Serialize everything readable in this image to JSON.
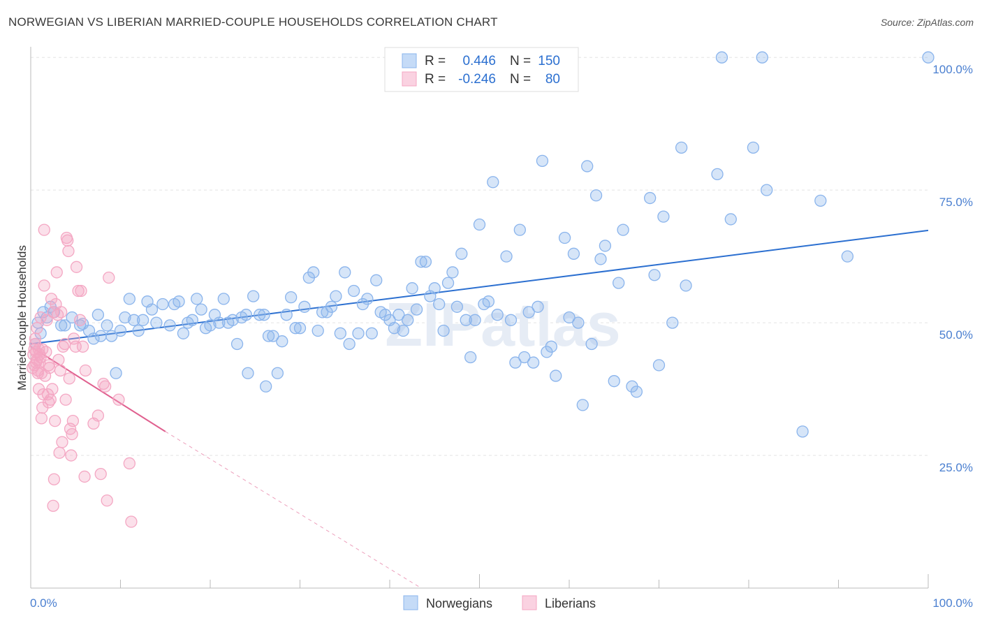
{
  "chart_data": {
    "type": "scatter",
    "title": "NORWEGIAN VS LIBERIAN MARRIED-COUPLE HOUSEHOLDS CORRELATION CHART",
    "source": "Source: ZipAtlas.com",
    "xlabel": "",
    "ylabel": "Married-couple Households",
    "xlim": [
      0,
      100
    ],
    "ylim": [
      0,
      102
    ],
    "x_tick_labels": [
      "0.0%",
      "100.0%"
    ],
    "y_ticks": [
      25,
      50,
      75,
      100
    ],
    "y_tick_labels": [
      "25.0%",
      "50.0%",
      "75.0%",
      "100.0%"
    ],
    "grid": true,
    "watermark": "ZIPatlas",
    "legend_stats": [
      {
        "r_label": "R =",
        "r_value": "0.446",
        "n_label": "N =",
        "n_value": "150"
      },
      {
        "r_label": "R =",
        "r_value": "-0.246",
        "n_label": "N =",
        "n_value": "80"
      }
    ],
    "series": [
      {
        "name": "Norwegians",
        "color": "#8ab4ec",
        "line_color": "#2b6fd0",
        "trend": {
          "x": [
            0,
            100
          ],
          "y": [
            46.0,
            67.4
          ]
        },
        "points": [
          [
            0.5,
            46
          ],
          [
            0.8,
            50
          ],
          [
            1.1,
            48
          ],
          [
            1.4,
            52
          ],
          [
            1.8,
            51
          ],
          [
            2.2,
            53
          ],
          [
            2.6,
            52
          ],
          [
            3.4,
            49.5
          ],
          [
            3.8,
            49.5
          ],
          [
            4.6,
            51
          ],
          [
            5.5,
            49.5
          ],
          [
            5.8,
            49.8
          ],
          [
            6.5,
            48.5
          ],
          [
            7,
            47
          ],
          [
            7.5,
            51.5
          ],
          [
            7.8,
            47.5
          ],
          [
            8.5,
            49.5
          ],
          [
            9,
            47.5
          ],
          [
            9.5,
            40.5
          ],
          [
            10,
            48.5
          ],
          [
            10.5,
            51
          ],
          [
            11,
            54.5
          ],
          [
            11.5,
            50.5
          ],
          [
            12,
            48.5
          ],
          [
            12.5,
            50.5
          ],
          [
            13,
            54
          ],
          [
            13.5,
            52.5
          ],
          [
            14,
            50
          ],
          [
            14.7,
            53.5
          ],
          [
            15.5,
            49.5
          ],
          [
            16,
            53.5
          ],
          [
            16.5,
            54
          ],
          [
            17,
            48
          ],
          [
            17.5,
            50
          ],
          [
            18,
            50.5
          ],
          [
            18.5,
            54.5
          ],
          [
            19,
            52.5
          ],
          [
            19.5,
            49
          ],
          [
            20,
            49.5
          ],
          [
            20.5,
            51.5
          ],
          [
            21,
            50
          ],
          [
            21.5,
            54.5
          ],
          [
            22,
            50
          ],
          [
            22.5,
            50.5
          ],
          [
            23,
            46
          ],
          [
            23.5,
            51
          ],
          [
            24,
            51.5
          ],
          [
            24.2,
            40.5
          ],
          [
            24.8,
            55
          ],
          [
            25.5,
            51.5
          ],
          [
            26,
            51.5
          ],
          [
            26.2,
            38
          ],
          [
            26.5,
            47.5
          ],
          [
            27,
            47.5
          ],
          [
            27.5,
            40.5
          ],
          [
            28,
            46.5
          ],
          [
            28.5,
            51.5
          ],
          [
            29,
            54.8
          ],
          [
            29.5,
            49
          ],
          [
            30,
            49
          ],
          [
            30.5,
            53
          ],
          [
            31,
            58.5
          ],
          [
            31.5,
            59.5
          ],
          [
            32,
            48.5
          ],
          [
            32.5,
            52
          ],
          [
            33,
            52
          ],
          [
            33.5,
            53
          ],
          [
            34,
            55
          ],
          [
            34.5,
            48
          ],
          [
            35,
            59.5
          ],
          [
            35.5,
            46
          ],
          [
            36,
            56
          ],
          [
            36.5,
            48
          ],
          [
            37,
            53.5
          ],
          [
            37.5,
            54.5
          ],
          [
            38,
            48
          ],
          [
            38.5,
            58
          ],
          [
            39,
            52
          ],
          [
            39.5,
            51.5
          ],
          [
            40,
            50.5
          ],
          [
            40.5,
            49
          ],
          [
            41,
            51.5
          ],
          [
            41.5,
            48.5
          ],
          [
            42,
            50.5
          ],
          [
            42.5,
            56.5
          ],
          [
            43,
            52.5
          ],
          [
            43.5,
            61.5
          ],
          [
            44,
            61.5
          ],
          [
            44.5,
            55
          ],
          [
            45,
            56.5
          ],
          [
            45.5,
            53.5
          ],
          [
            46,
            48.5
          ],
          [
            46.5,
            57.5
          ],
          [
            47,
            59.5
          ],
          [
            47.5,
            53
          ],
          [
            48,
            63
          ],
          [
            48.5,
            50.5
          ],
          [
            49,
            43.5
          ],
          [
            49.5,
            50.5
          ],
          [
            50,
            68.5
          ],
          [
            50.5,
            53.5
          ],
          [
            51,
            54
          ],
          [
            51.5,
            76.5
          ],
          [
            52,
            51.5
          ],
          [
            53,
            62.5
          ],
          [
            53.5,
            50.5
          ],
          [
            54,
            42.5
          ],
          [
            54.5,
            67.5
          ],
          [
            55,
            43.5
          ],
          [
            55.5,
            52
          ],
          [
            56,
            42.5
          ],
          [
            56.5,
            53
          ],
          [
            57,
            80.5
          ],
          [
            57.5,
            44.5
          ],
          [
            58,
            45.5
          ],
          [
            58.5,
            40
          ],
          [
            59.5,
            66
          ],
          [
            60,
            51
          ],
          [
            60.5,
            63
          ],
          [
            61,
            50
          ],
          [
            61.5,
            34.5
          ],
          [
            62,
            79.5
          ],
          [
            62.5,
            46
          ],
          [
            63,
            74
          ],
          [
            63.5,
            62
          ],
          [
            64,
            64.5
          ],
          [
            65,
            39
          ],
          [
            65.5,
            57.5
          ],
          [
            66,
            67.5
          ],
          [
            67,
            38
          ],
          [
            67.5,
            37
          ],
          [
            69,
            73.5
          ],
          [
            69.5,
            59
          ],
          [
            70,
            42
          ],
          [
            70.5,
            70
          ],
          [
            71.5,
            50
          ],
          [
            72.5,
            83
          ],
          [
            73,
            57
          ],
          [
            76.5,
            78
          ],
          [
            77,
            100
          ],
          [
            78,
            69.5
          ],
          [
            80.5,
            83
          ],
          [
            81.5,
            100
          ],
          [
            82,
            75
          ],
          [
            86,
            29.5
          ],
          [
            88,
            73
          ],
          [
            91,
            62.5
          ],
          [
            100,
            100
          ]
        ]
      },
      {
        "name": "Liberians",
        "color": "#f4a7c3",
        "line_color": "#e0608f",
        "trend": {
          "x": [
            0,
            15
          ],
          "y": [
            45.5,
            29.5
          ]
        },
        "trend_dashed": {
          "x": [
            15,
            43.5
          ],
          "y": [
            29.5,
            0
          ]
        },
        "points": [
          [
            0.2,
            41.5
          ],
          [
            0.3,
            44
          ],
          [
            0.4,
            45
          ],
          [
            0.4,
            42
          ],
          [
            0.5,
            46
          ],
          [
            0.5,
            47
          ],
          [
            0.6,
            44.5
          ],
          [
            0.6,
            42.5
          ],
          [
            0.7,
            43
          ],
          [
            0.7,
            49
          ],
          [
            0.8,
            41
          ],
          [
            0.8,
            40.5
          ],
          [
            0.9,
            45
          ],
          [
            0.9,
            37.5
          ],
          [
            1,
            44
          ],
          [
            1,
            42.5
          ],
          [
            1.1,
            51
          ],
          [
            1.1,
            43.5
          ],
          [
            1.2,
            40.5
          ],
          [
            1.2,
            32
          ],
          [
            1.3,
            34
          ],
          [
            1.3,
            45
          ],
          [
            1.4,
            36.5
          ],
          [
            1.5,
            67.5
          ],
          [
            1.5,
            57
          ],
          [
            1.6,
            40
          ],
          [
            1.7,
            44.5
          ],
          [
            1.8,
            50.5
          ],
          [
            1.9,
            36.5
          ],
          [
            2,
            35
          ],
          [
            2,
            42
          ],
          [
            2.1,
            41.5
          ],
          [
            2.2,
            35.5
          ],
          [
            2.3,
            54.5
          ],
          [
            2.4,
            37.5
          ],
          [
            2.5,
            15.5
          ],
          [
            2.5,
            52
          ],
          [
            2.6,
            20.5
          ],
          [
            2.7,
            31.5
          ],
          [
            2.8,
            53.5
          ],
          [
            2.9,
            59.5
          ],
          [
            3,
            51.5
          ],
          [
            3.1,
            43
          ],
          [
            3.2,
            25.5
          ],
          [
            3.3,
            41
          ],
          [
            3.4,
            52
          ],
          [
            3.5,
            27.5
          ],
          [
            3.6,
            45.5
          ],
          [
            3.8,
            46
          ],
          [
            3.9,
            35.5
          ],
          [
            4,
            66
          ],
          [
            4.1,
            65.5
          ],
          [
            4.2,
            63.5
          ],
          [
            4.3,
            39.5
          ],
          [
            4.4,
            30
          ],
          [
            4.5,
            25
          ],
          [
            4.6,
            29
          ],
          [
            4.7,
            31.5
          ],
          [
            4.8,
            47
          ],
          [
            5,
            45.5
          ],
          [
            5.1,
            60.5
          ],
          [
            5.3,
            56
          ],
          [
            5.5,
            50.5
          ],
          [
            5.6,
            56
          ],
          [
            5.8,
            45.5
          ],
          [
            6,
            21
          ],
          [
            6.1,
            41
          ],
          [
            7,
            31
          ],
          [
            7.5,
            32.5
          ],
          [
            7.8,
            21.5
          ],
          [
            8.1,
            38.5
          ],
          [
            8.3,
            38
          ],
          [
            8.5,
            16.5
          ],
          [
            8.7,
            58.5
          ],
          [
            9.8,
            35.5
          ],
          [
            11,
            23.5
          ],
          [
            11.2,
            12.5
          ]
        ]
      }
    ]
  },
  "bottom_legend": [
    "Norwegians",
    "Liberians"
  ]
}
